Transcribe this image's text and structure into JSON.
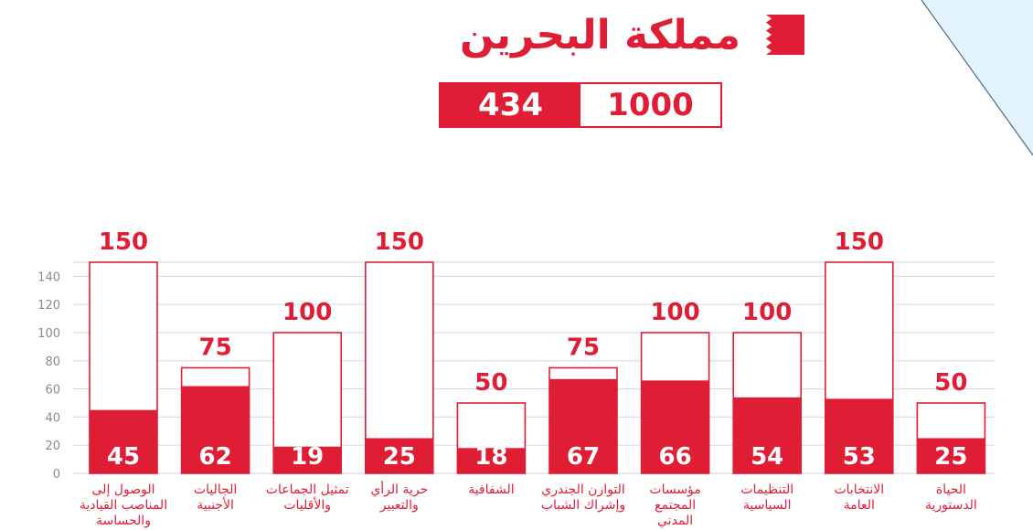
{
  "header": {
    "title": "مملكة البحرين",
    "country_total": "1000",
    "country_score": "434"
  },
  "icons": {
    "flag": "bahrain-flag-icon"
  },
  "colors": {
    "accent": "#df1e36",
    "grid": "#d9dbef",
    "axis_text": "#8a8a8a",
    "corner": "#e3f4fc"
  },
  "chart_data": {
    "type": "bar",
    "ylim": [
      0,
      150
    ],
    "yticks": [
      0,
      20,
      40,
      60,
      80,
      100,
      120,
      140,
      150
    ],
    "grid": true,
    "categories": [
      "الوصول إلى المناصب القيادية والحساسة",
      "الجاليات الأجنبية",
      "تمثيل الجماعات والأقليات",
      "حرية الرأي والتعبير",
      "الشفافية",
      "التوازن الجندري وإشراك الشباب",
      "مؤسسات المجتمع المدني",
      "التنظيمات السياسية",
      "الانتخابات العامة",
      "الحياة الدستورية"
    ],
    "category_lines": [
      [
        "الوصول إلى",
        "المناصب القيادية",
        "والحساسة"
      ],
      [
        "الجاليات",
        "الأجنبية"
      ],
      [
        "تمثيل الجماعات",
        "والأقليات"
      ],
      [
        "حرية الرأي",
        "والتعبير"
      ],
      [
        "الشفافية"
      ],
      [
        "التوازن الجندري",
        "وإشراك الشباب"
      ],
      [
        "مؤسسات",
        "المجتمع",
        "المدني"
      ],
      [
        "التنظيمات",
        "السياسية"
      ],
      [
        "الانتخابات",
        "العامة"
      ],
      [
        "الحياة",
        "الدستورية"
      ]
    ],
    "series": [
      {
        "name": "",
        "values": [
          150,
          75,
          100,
          150,
          50,
          75,
          100,
          100,
          150,
          50
        ]
      },
      {
        "name": "",
        "values": [
          45,
          62,
          19,
          25,
          18,
          67,
          66,
          54,
          53,
          25
        ]
      }
    ]
  }
}
